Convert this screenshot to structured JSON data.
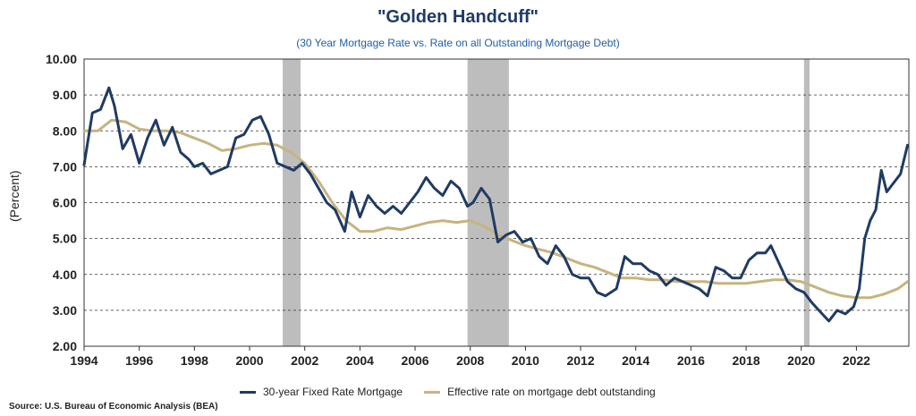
{
  "chart_data": {
    "type": "line",
    "title": "\"Golden Handcuff\"",
    "subtitle": "(30 Year Mortgage Rate vs. Rate on all Outstanding Mortgage Debt)",
    "ylabel": "(Percent)",
    "xlabel": "",
    "source": "Source: U.S. Bureau of Economic Analysis (BEA)",
    "xlim": [
      1994,
      2023.9
    ],
    "ylim": [
      2.0,
      10.0
    ],
    "x_ticks": [
      1994,
      1996,
      1998,
      2000,
      2002,
      2004,
      2006,
      2008,
      2010,
      2012,
      2014,
      2016,
      2018,
      2020,
      2022
    ],
    "y_ticks": [
      "2.00",
      "3.00",
      "4.00",
      "5.00",
      "6.00",
      "7.00",
      "8.00",
      "9.00",
      "10.00"
    ],
    "grid": "horizontal dashed",
    "legend_position": "bottom",
    "recessions": [
      [
        2001.2,
        2001.85
      ],
      [
        2007.9,
        2009.4
      ],
      [
        2020.1,
        2020.3
      ]
    ],
    "series": [
      {
        "name": "30-year Fixed Rate Mortgage",
        "color": "#1f3b64",
        "x": [
          1994.0,
          1994.3,
          1994.6,
          1994.9,
          1995.1,
          1995.4,
          1995.7,
          1996.0,
          1996.3,
          1996.6,
          1996.9,
          1997.2,
          1997.5,
          1997.8,
          1998.0,
          1998.3,
          1998.6,
          1998.9,
          1999.2,
          1999.5,
          1999.8,
          2000.1,
          2000.4,
          2000.7,
          2001.0,
          2001.3,
          2001.6,
          2001.9,
          2002.2,
          2002.5,
          2002.8,
          2003.1,
          2003.45,
          2003.7,
          2004.0,
          2004.3,
          2004.6,
          2004.9,
          2005.2,
          2005.5,
          2005.8,
          2006.1,
          2006.4,
          2006.7,
          2007.0,
          2007.3,
          2007.6,
          2007.9,
          2008.1,
          2008.4,
          2008.7,
          2009.0,
          2009.3,
          2009.6,
          2009.9,
          2010.2,
          2010.5,
          2010.8,
          2011.1,
          2011.4,
          2011.7,
          2012.0,
          2012.3,
          2012.6,
          2012.9,
          2013.3,
          2013.6,
          2013.9,
          2014.2,
          2014.5,
          2014.8,
          2015.1,
          2015.4,
          2015.7,
          2016.0,
          2016.3,
          2016.6,
          2016.9,
          2017.2,
          2017.5,
          2017.8,
          2018.1,
          2018.4,
          2018.7,
          2018.9,
          2019.2,
          2019.5,
          2019.8,
          2020.1,
          2020.4,
          2020.7,
          2021.0,
          2021.3,
          2021.6,
          2021.9,
          2022.1,
          2022.3,
          2022.5,
          2022.7,
          2022.9,
          2023.1,
          2023.3,
          2023.6,
          2023.85
        ],
        "values": [
          7.05,
          8.5,
          8.6,
          9.2,
          8.7,
          7.5,
          7.9,
          7.1,
          7.8,
          8.3,
          7.6,
          8.1,
          7.4,
          7.2,
          7.0,
          7.1,
          6.8,
          6.9,
          7.0,
          7.8,
          7.9,
          8.3,
          8.4,
          7.9,
          7.1,
          7.0,
          6.9,
          7.1,
          6.8,
          6.4,
          6.0,
          5.8,
          5.2,
          6.3,
          5.6,
          6.2,
          5.9,
          5.7,
          5.9,
          5.7,
          6.0,
          6.3,
          6.7,
          6.4,
          6.2,
          6.6,
          6.4,
          5.9,
          6.0,
          6.4,
          6.1,
          4.9,
          5.1,
          5.2,
          4.9,
          5.0,
          4.5,
          4.3,
          4.8,
          4.5,
          4.0,
          3.9,
          3.9,
          3.5,
          3.4,
          3.6,
          4.5,
          4.3,
          4.3,
          4.1,
          4.0,
          3.7,
          3.9,
          3.8,
          3.7,
          3.6,
          3.4,
          4.2,
          4.1,
          3.9,
          3.9,
          4.4,
          4.6,
          4.6,
          4.8,
          4.3,
          3.8,
          3.6,
          3.5,
          3.2,
          2.95,
          2.7,
          3.0,
          2.9,
          3.1,
          3.6,
          5.0,
          5.5,
          5.8,
          6.9,
          6.3,
          6.5,
          6.8,
          7.6
        ]
      },
      {
        "name": "Effective rate on mortgage debt outstanding",
        "color": "#c7b37f",
        "x": [
          1994.0,
          1994.5,
          1995.0,
          1995.5,
          1996.0,
          1996.5,
          1997.0,
          1997.5,
          1998.0,
          1998.5,
          1999.0,
          1999.5,
          2000.0,
          2000.5,
          2001.0,
          2001.5,
          2002.0,
          2002.5,
          2003.0,
          2003.5,
          2004.0,
          2004.5,
          2005.0,
          2005.5,
          2006.0,
          2006.5,
          2007.0,
          2007.5,
          2008.0,
          2008.5,
          2009.0,
          2009.5,
          2010.0,
          2010.5,
          2011.0,
          2011.5,
          2012.0,
          2012.5,
          2013.0,
          2013.5,
          2014.0,
          2014.5,
          2015.0,
          2015.5,
          2016.0,
          2016.5,
          2017.0,
          2017.5,
          2018.0,
          2018.5,
          2019.0,
          2019.5,
          2020.0,
          2020.5,
          2021.0,
          2021.5,
          2022.0,
          2022.5,
          2023.0,
          2023.5,
          2023.85
        ],
        "values": [
          8.0,
          8.0,
          8.3,
          8.25,
          8.05,
          8.0,
          8.0,
          7.95,
          7.8,
          7.65,
          7.45,
          7.5,
          7.6,
          7.65,
          7.6,
          7.4,
          7.1,
          6.6,
          6.0,
          5.5,
          5.2,
          5.2,
          5.3,
          5.25,
          5.35,
          5.45,
          5.5,
          5.45,
          5.5,
          5.35,
          5.1,
          4.95,
          4.8,
          4.7,
          4.6,
          4.45,
          4.3,
          4.2,
          4.05,
          3.9,
          3.9,
          3.85,
          3.85,
          3.8,
          3.8,
          3.8,
          3.75,
          3.75,
          3.75,
          3.8,
          3.85,
          3.85,
          3.8,
          3.65,
          3.5,
          3.4,
          3.35,
          3.35,
          3.45,
          3.6,
          3.8
        ]
      }
    ]
  }
}
